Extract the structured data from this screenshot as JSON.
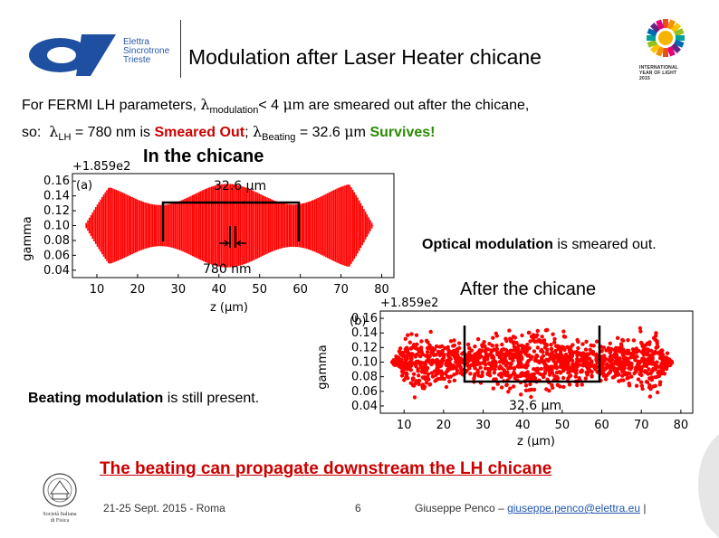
{
  "header": {
    "title": "Modulation after Laser Heater chicane",
    "logo_text": [
      "Elettra",
      "Sincrotrone",
      "Trieste"
    ],
    "iyl_text": [
      "INTERNATIONAL",
      "YEAR OF LIGHT",
      "2015"
    ]
  },
  "intro": {
    "line1_a": "For FERMI LH parameters, ",
    "line1_lambda": "λ",
    "line1_sub": "modulation",
    "line1_b": "< 4 ",
    "line1_mu": "μ",
    "line1_c": "m are smeared out after the chicane,",
    "line2_so": "so:",
    "line2_lambda1": "λ",
    "line2_sub1": "LH",
    "line2_val1": " = 780 nm  is ",
    "line2_smeared": "Smeared Out",
    "line2_sep": ";  ",
    "line2_lambda2": "λ",
    "line2_sub2": "Beating",
    "line2_val2": " = 32.6 ",
    "line2_mu": "μ",
    "line2_m": "m ",
    "line2_survives": "Survives!"
  },
  "labels": {
    "in_chicane": "In the chicane",
    "after_chicane": "After the chicane",
    "optical_bold": "Optical modulation",
    "optical_rest": " is smeared out.",
    "beating_bold": "Beating modulation",
    "beating_rest": " is still present."
  },
  "chart_data": [
    {
      "type": "scatter",
      "panel": "(a)",
      "xlabel": "z (μm)",
      "ylabel": "gamma",
      "offset_label": "+1.859e2",
      "x_ticks": [
        "10",
        "20",
        "30",
        "40",
        "50",
        "60",
        "70",
        "80"
      ],
      "y_ticks": [
        "0.16",
        "0.14",
        "0.12",
        "0.10",
        "0.08",
        "0.06",
        "0.04"
      ],
      "xlim": [
        4,
        83
      ],
      "ylim": [
        0.03,
        0.17
      ],
      "annotations": [
        "32.6 μm",
        "780 nm"
      ],
      "series_color": "#ff0000"
    },
    {
      "type": "scatter",
      "panel": "(b)",
      "xlabel": "z (μm)",
      "ylabel": "gamma",
      "offset_label": "+1.859e2",
      "x_ticks": [
        "10",
        "20",
        "30",
        "40",
        "50",
        "60",
        "70",
        "80"
      ],
      "y_ticks": [
        "0.16",
        "0.14",
        "0.12",
        "0.10",
        "0.08",
        "0.06",
        "0.04"
      ],
      "xlim": [
        4,
        83
      ],
      "ylim": [
        0.03,
        0.17
      ],
      "annotations": [
        "32.6 μm"
      ],
      "series_color": "#ff0000"
    }
  ],
  "conclusion": "The beating can propagate downstream the LH chicane",
  "footer": {
    "date": "21-25 Sept. 2015 - Roma",
    "page": "6",
    "author": "Giuseppe Penco – ",
    "email": "giuseppe.penco@elettra.eu",
    "sep": " |",
    "seal_text": [
      "Società Italiana",
      "di Fisica"
    ]
  },
  "colors": {
    "accent_red": "#cc0000",
    "accent_green": "#2a8a00",
    "brand_blue": "#1f4fa0",
    "scatter_red": "#ff0000"
  }
}
